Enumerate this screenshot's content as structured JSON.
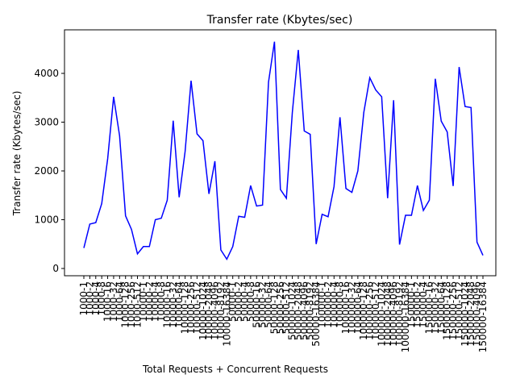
{
  "chart_data": {
    "type": "line",
    "title": "Transfer rate (Kbytes/sec)",
    "x_label": "Total Requests + Concurrent Requests",
    "y_label": "Transfer rate (Kbytes/sec)",
    "categories": [
      "1000-1",
      "1000-2",
      "1000-4",
      "1000-8",
      "1000-16",
      "1000-32",
      "1000-64",
      "1000-128",
      "1000-256",
      "1000-512",
      "10000-1",
      "10000-2",
      "10000-4",
      "10000-8",
      "10000-16",
      "10000-32",
      "10000-64",
      "10000-128",
      "10000-256",
      "10000-512",
      "10000-1024",
      "10000-2048",
      "10000-4096",
      "10000-8192",
      "10000-16384",
      "50000-1",
      "50000-2",
      "50000-4",
      "50000-8",
      "50000-16",
      "50000-32",
      "50000-64",
      "50000-128",
      "50000-256",
      "50000-512",
      "50000-1024",
      "50000-2048",
      "50000-4096",
      "50000-8192",
      "50000-16384",
      "100000-1",
      "100000-2",
      "100000-4",
      "100000-8",
      "100000-16",
      "100000-32",
      "100000-64",
      "100000-128",
      "100000-256",
      "100000-512",
      "100000-1024",
      "100000-2048",
      "100000-4096",
      "100000-8192",
      "100000-16384",
      "150000-1",
      "150000-2",
      "150000-4",
      "150000-16",
      "150000-32",
      "150000-64",
      "150000-128",
      "150000-256",
      "150000-512",
      "150000-1024",
      "150000-2048",
      "150000-4096",
      "150000-16384"
    ],
    "series": [
      {
        "name": "Transfer rate",
        "color": "#0000ff",
        "values": [
          420,
          910,
          940,
          1330,
          2250,
          3520,
          2720,
          1080,
          800,
          300,
          450,
          450,
          1000,
          1030,
          1400,
          3030,
          1460,
          2400,
          3850,
          2760,
          2620,
          1530,
          2200,
          380,
          190,
          450,
          1070,
          1050,
          1700,
          1280,
          1300,
          3820,
          4650,
          1620,
          1440,
          3200,
          4480,
          2820,
          2750,
          500,
          1110,
          1060,
          1680,
          3100,
          1640,
          1560,
          2000,
          3200,
          3910,
          3660,
          3520,
          1440,
          3450,
          490,
          1090,
          1090,
          1700,
          1190,
          1400,
          3890,
          3020,
          2800,
          1690,
          4130,
          3320,
          3300,
          540,
          270
        ]
      }
    ],
    "ylim": [
      -149,
      4893
    ],
    "yticks": [
      0,
      1000,
      2000,
      3000,
      4000
    ]
  }
}
